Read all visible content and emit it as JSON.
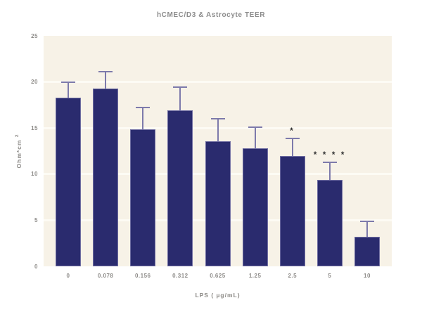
{
  "chart_data": {
    "type": "bar",
    "title": "hCMEC/D3 & Astrocyte TEER",
    "xlabel": "LPS ( µg/mL)",
    "ylabel": "Ohm*cm",
    "ylabel_superscript": "2",
    "categories": [
      "0",
      "0.078",
      "0.156",
      "0.312",
      "0.625",
      "1.25",
      "2.5",
      "5",
      "10"
    ],
    "values": [
      18.3,
      19.3,
      14.9,
      16.9,
      13.6,
      12.8,
      12.0,
      9.4,
      3.2
    ],
    "errors_upper": [
      1.7,
      1.8,
      2.3,
      2.5,
      2.4,
      2.3,
      1.9,
      1.9,
      1.7
    ],
    "annotations": [
      {
        "index": 6,
        "category": "2.5",
        "text": "*",
        "meaning": "significance-star"
      },
      {
        "index": 7,
        "category": "5",
        "text": "****",
        "meaning": "significance-stars"
      }
    ],
    "ylim": [
      0,
      25
    ],
    "yticks": [
      "0",
      "5",
      "10",
      "15",
      "20",
      "25"
    ],
    "gridline_values": [
      5,
      10,
      15,
      20
    ],
    "legend": "none",
    "grid": "horizontal white lines on cream plot background",
    "colors": {
      "bar_fill": "#2a2b6e",
      "bar_edge": "#7d7aab",
      "error_bar": "#7d7aab",
      "plot_background": "#f7f2e7",
      "gridline": "#fdfbf4",
      "tick_text": "#8d8b88",
      "title_text": "#8c8c8c",
      "annotation_text": "#323232",
      "figure_background": "#ffffff"
    }
  }
}
